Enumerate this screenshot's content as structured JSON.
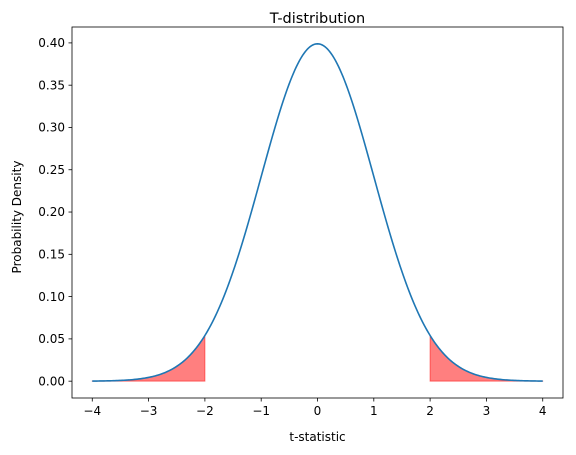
{
  "chart_data": {
    "type": "line",
    "title": "T-distribution",
    "xlabel": "t-statistic",
    "ylabel": "Probability Density",
    "xlim": [
      -4.36,
      4.36
    ],
    "ylim": [
      -0.0199,
      0.4188
    ],
    "xticks": [
      -4,
      -3,
      -2,
      -1,
      0,
      1,
      2,
      3,
      4
    ],
    "xtick_labels": [
      "−4",
      "−3",
      "−2",
      "−1",
      "0",
      "1",
      "2",
      "3",
      "4"
    ],
    "yticks": [
      0.0,
      0.05,
      0.1,
      0.15,
      0.2,
      0.25,
      0.3,
      0.35,
      0.4
    ],
    "ytick_labels": [
      "0.00",
      "0.05",
      "0.10",
      "0.15",
      "0.20",
      "0.25",
      "0.30",
      "0.35",
      "0.40"
    ],
    "grid": false,
    "series": [
      {
        "x": [
          -4.0,
          -3.5,
          -3.0,
          -2.5,
          -2.0,
          -1.5,
          -1.0,
          -0.5,
          0.0,
          0.5,
          1.0,
          1.5,
          2.0,
          2.5,
          3.0,
          3.5,
          4.0
        ],
        "y": [
          0.0003,
          0.0012,
          0.0052,
          0.0163,
          0.0555,
          0.1321,
          0.2419,
          0.3525,
          0.3976,
          0.3525,
          0.2419,
          0.1321,
          0.0555,
          0.0163,
          0.0052,
          0.0012,
          0.0003
        ]
      }
    ],
    "shaded_regions": [
      {
        "x_from": -4.0,
        "x_to": -2.0
      },
      {
        "x_from": 2.0,
        "x_to": 4.0
      }
    ],
    "colors": {
      "line": "#1f77b4",
      "fill": "#ff0000",
      "fill_opacity": 0.5
    }
  }
}
